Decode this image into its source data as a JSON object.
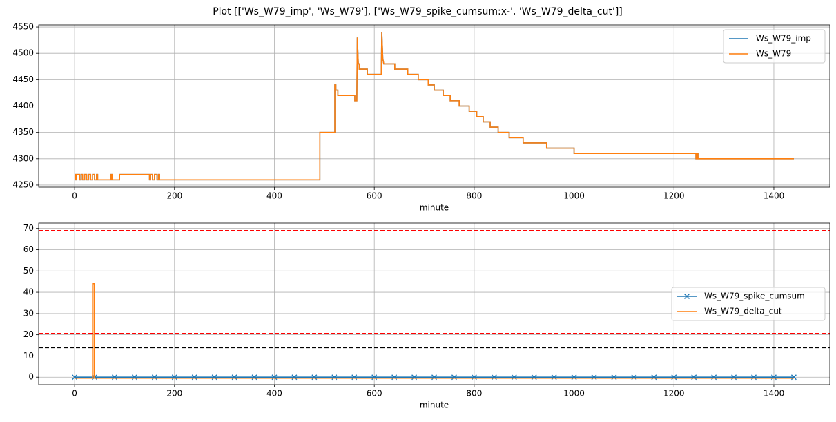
{
  "title": "Plot [['Ws_W79_imp', 'Ws_W79'], ['Ws_W79_spike_cumsum:x-', 'Ws_W79_delta_cut']]",
  "chart_data": [
    {
      "type": "line",
      "xlabel": "minute",
      "xlim": [
        -72,
        1512
      ],
      "xticks": [
        0,
        200,
        400,
        600,
        800,
        1000,
        1200,
        1400
      ],
      "ylim": [
        4246,
        4554
      ],
      "yticks": [
        4250,
        4300,
        4350,
        4400,
        4450,
        4500,
        4550
      ],
      "grid": true,
      "legend": "upper right",
      "x": [
        0,
        2,
        2,
        4,
        4,
        10,
        10,
        13,
        13,
        16,
        16,
        20,
        20,
        24,
        24,
        28,
        28,
        32,
        32,
        36,
        36,
        40,
        40,
        44,
        44,
        46,
        46,
        73,
        73,
        75,
        75,
        90,
        90,
        150,
        150,
        152,
        152,
        156,
        156,
        160,
        160,
        165,
        165,
        168,
        168,
        170,
        170,
        491,
        491,
        521,
        521,
        523,
        523,
        527,
        527,
        561,
        561,
        565,
        566,
        568,
        570,
        570,
        586,
        586,
        614,
        615,
        617,
        619,
        641,
        641,
        667,
        667,
        688,
        688,
        708,
        708,
        720,
        720,
        738,
        738,
        752,
        752,
        770,
        770,
        790,
        790,
        805,
        805,
        818,
        818,
        832,
        832,
        848,
        848,
        870,
        870,
        898,
        898,
        945,
        945,
        1000,
        1000,
        1244,
        1244,
        1246,
        1246,
        1248,
        1248,
        1440
      ],
      "series": [
        {
          "name": "Ws_W79_imp",
          "color": "#1f77b4",
          "values": [
            4270,
            4270,
            4260,
            4260,
            4270,
            4270,
            4260,
            4260,
            4270,
            4270,
            4260,
            4260,
            4270,
            4270,
            4260,
            4260,
            4270,
            4270,
            4260,
            4260,
            4270,
            4270,
            4260,
            4260,
            4270,
            4270,
            4260,
            4260,
            4270,
            4270,
            4260,
            4260,
            4270,
            4270,
            4260,
            4260,
            4270,
            4270,
            4260,
            4260,
            4270,
            4270,
            4260,
            4260,
            4270,
            4270,
            4260,
            4260,
            4350,
            4350,
            4440,
            4440,
            4430,
            4430,
            4420,
            4420,
            4410,
            4410,
            4530,
            4480,
            4480,
            4470,
            4470,
            4460,
            4460,
            4540,
            4490,
            4480,
            4480,
            4470,
            4470,
            4460,
            4460,
            4450,
            4450,
            4440,
            4440,
            4430,
            4430,
            4420,
            4420,
            4410,
            4410,
            4400,
            4400,
            4390,
            4390,
            4380,
            4380,
            4370,
            4370,
            4360,
            4360,
            4350,
            4350,
            4340,
            4340,
            4330,
            4330,
            4320,
            4320,
            4310,
            4310,
            4300,
            4300,
            4310,
            4310,
            4300,
            4300
          ]
        },
        {
          "name": "Ws_W79",
          "color": "#ff7f0e",
          "values": [
            4270,
            4270,
            4260,
            4260,
            4270,
            4270,
            4260,
            4260,
            4270,
            4270,
            4260,
            4260,
            4270,
            4270,
            4260,
            4260,
            4270,
            4270,
            4260,
            4260,
            4270,
            4270,
            4260,
            4260,
            4270,
            4270,
            4260,
            4260,
            4270,
            4270,
            4260,
            4260,
            4270,
            4270,
            4260,
            4260,
            4270,
            4270,
            4260,
            4260,
            4270,
            4270,
            4260,
            4260,
            4270,
            4270,
            4260,
            4260,
            4350,
            4350,
            4440,
            4440,
            4430,
            4430,
            4420,
            4420,
            4410,
            4410,
            4530,
            4480,
            4480,
            4470,
            4470,
            4460,
            4460,
            4540,
            4490,
            4480,
            4480,
            4470,
            4470,
            4460,
            4460,
            4450,
            4450,
            4440,
            4440,
            4430,
            4430,
            4420,
            4420,
            4410,
            4410,
            4400,
            4400,
            4390,
            4390,
            4380,
            4380,
            4370,
            4370,
            4360,
            4360,
            4350,
            4350,
            4340,
            4340,
            4330,
            4330,
            4320,
            4320,
            4310,
            4310,
            4300,
            4300,
            4310,
            4310,
            4300,
            4300
          ]
        }
      ]
    },
    {
      "type": "line",
      "xlabel": "minute",
      "xlim": [
        -72,
        1512
      ],
      "xticks": [
        0,
        200,
        400,
        600,
        800,
        1000,
        1200,
        1400
      ],
      "ylim": [
        -3.5,
        72.5
      ],
      "yticks": [
        0,
        10,
        20,
        30,
        40,
        50,
        60,
        70
      ],
      "grid": true,
      "legend": "center right",
      "hlines": [
        {
          "y": 69,
          "color": "#ff0000"
        },
        {
          "y": 20.6,
          "color": "#ff0000"
        },
        {
          "y": 13.9,
          "color": "#000000"
        }
      ],
      "series": [
        {
          "name": "Ws_W79_spike_cumsum",
          "color": "#1f77b4",
          "marker": "x",
          "x": [
            0,
            40,
            80,
            120,
            160,
            200,
            240,
            280,
            320,
            360,
            400,
            440,
            480,
            520,
            560,
            600,
            640,
            680,
            720,
            760,
            800,
            840,
            880,
            920,
            960,
            1000,
            1040,
            1080,
            1120,
            1160,
            1200,
            1240,
            1280,
            1320,
            1360,
            1400,
            1440
          ],
          "values": [
            0,
            0,
            0,
            0,
            0,
            0,
            0,
            0,
            0,
            0,
            0,
            0,
            0,
            0,
            0,
            0,
            0,
            0,
            0,
            0,
            0,
            0,
            0,
            0,
            0,
            0,
            0,
            0,
            0,
            0,
            0,
            0,
            0,
            0,
            0,
            0,
            0
          ]
        },
        {
          "name": "Ws_W79_delta_cut",
          "color": "#ff7f0e",
          "x": [
            0,
            36,
            36,
            39,
            39,
            1440
          ],
          "values": [
            -0.5,
            -0.5,
            44,
            44,
            -0.5,
            -0.5
          ]
        }
      ]
    }
  ]
}
